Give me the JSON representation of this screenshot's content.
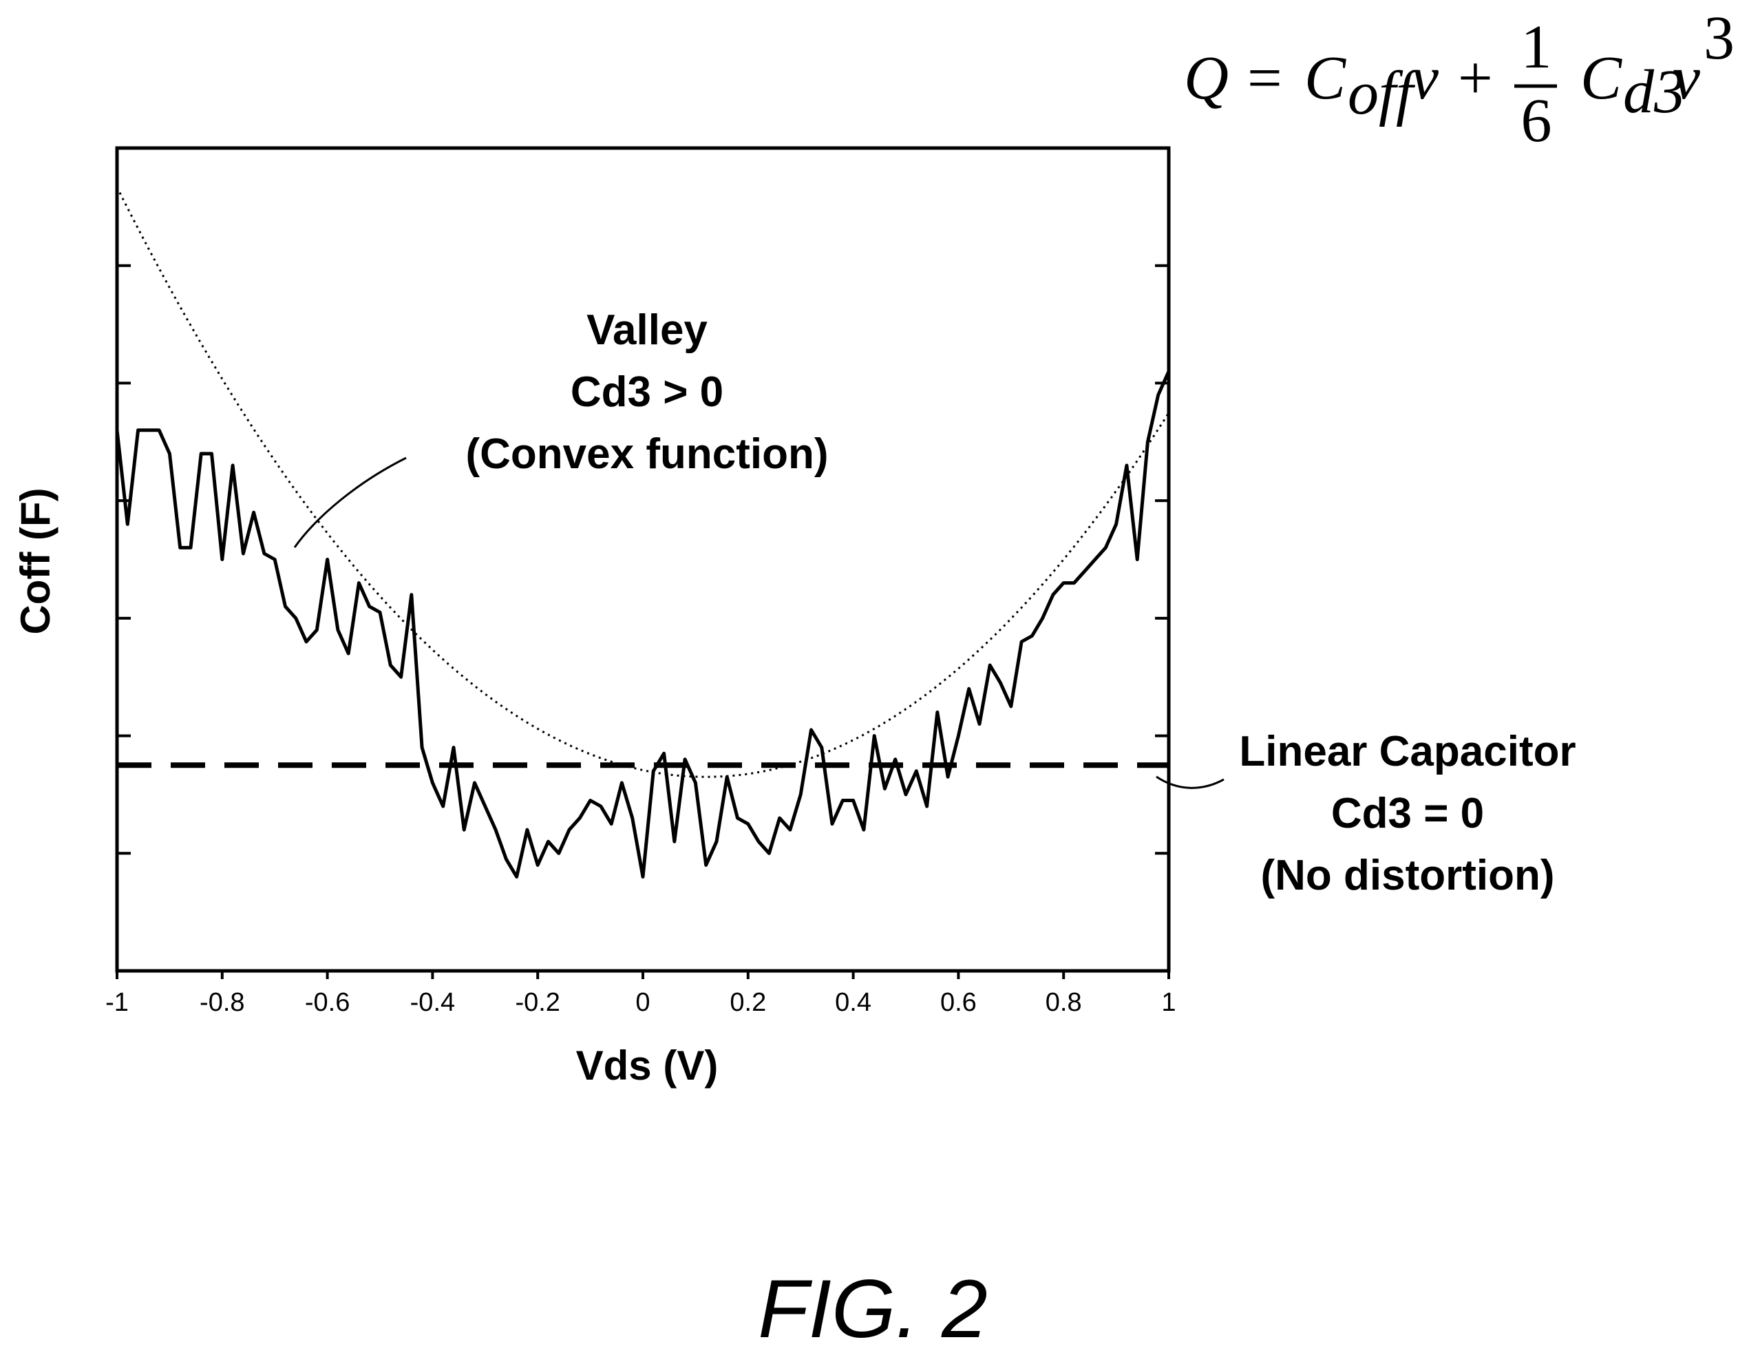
{
  "figure_label": "FIG. 2",
  "equation": {
    "q": "Q",
    "equals": "=",
    "c1": "C",
    "c1_sub": "off",
    "v1": "v",
    "plus": "+",
    "num": "1",
    "den": "6",
    "c2": "C",
    "c2_sub": "d3",
    "v2": "v",
    "exp": "3"
  },
  "chart_data": {
    "type": "line",
    "xlabel": "Vds (V)",
    "ylabel": "Coff (F)",
    "xlim": [
      -1,
      1
    ],
    "ylim": [
      0,
      7
    ],
    "x_ticks": [
      -1,
      -0.8,
      -0.6,
      -0.4,
      -0.2,
      0,
      0.2,
      0.4,
      0.6,
      0.8,
      1
    ],
    "x_tick_labels": [
      "-1",
      "-0.8",
      "-0.6",
      "-0.4",
      "-0.2",
      "0",
      "0.2",
      "0.4",
      "0.6",
      "0.8",
      "1"
    ],
    "y_ticks": [
      1,
      2,
      3,
      4,
      5,
      6
    ],
    "y_tick_labels": [],
    "grid": false,
    "series": [
      {
        "style": "solid",
        "x": [
          -1.0,
          -0.98,
          -0.96,
          -0.94,
          -0.92,
          -0.9,
          -0.88,
          -0.86,
          -0.84,
          -0.82,
          -0.8,
          -0.78,
          -0.76,
          -0.74,
          -0.72,
          -0.7,
          -0.68,
          -0.66,
          -0.64,
          -0.62,
          -0.6,
          -0.58,
          -0.56,
          -0.54,
          -0.52,
          -0.5,
          -0.48,
          -0.46,
          -0.44,
          -0.42,
          -0.4,
          -0.38,
          -0.36,
          -0.34,
          -0.32,
          -0.3,
          -0.28,
          -0.26,
          -0.24,
          -0.22,
          -0.2,
          -0.18,
          -0.16,
          -0.14,
          -0.12,
          -0.1,
          -0.08,
          -0.06,
          -0.04,
          -0.02,
          0.0,
          0.02,
          0.04,
          0.06,
          0.08,
          0.1,
          0.12,
          0.14,
          0.16,
          0.18,
          0.2,
          0.22,
          0.24,
          0.26,
          0.28,
          0.3,
          0.32,
          0.34,
          0.36,
          0.38,
          0.4,
          0.42,
          0.44,
          0.46,
          0.48,
          0.5,
          0.52,
          0.54,
          0.56,
          0.58,
          0.6,
          0.62,
          0.64,
          0.66,
          0.68,
          0.7,
          0.72,
          0.74,
          0.76,
          0.78,
          0.8,
          0.82,
          0.84,
          0.86,
          0.88,
          0.9,
          0.92,
          0.94,
          0.96,
          0.98,
          1.0
        ],
        "y": [
          4.6,
          3.8,
          4.6,
          4.6,
          4.6,
          4.4,
          3.6,
          3.6,
          4.4,
          4.4,
          3.5,
          4.3,
          3.55,
          3.9,
          3.55,
          3.5,
          3.1,
          3.0,
          2.8,
          2.9,
          3.5,
          2.9,
          2.7,
          3.3,
          3.1,
          3.05,
          2.6,
          2.5,
          3.2,
          1.9,
          1.6,
          1.4,
          1.9,
          1.2,
          1.6,
          1.4,
          1.2,
          0.95,
          0.8,
          1.2,
          0.9,
          1.1,
          1.0,
          1.2,
          1.3,
          1.45,
          1.4,
          1.25,
          1.6,
          1.3,
          0.8,
          1.7,
          1.85,
          1.1,
          1.8,
          1.6,
          0.9,
          1.1,
          1.65,
          1.3,
          1.25,
          1.1,
          1.0,
          1.3,
          1.2,
          1.5,
          2.05,
          1.9,
          1.25,
          1.45,
          1.45,
          1.2,
          2.0,
          1.55,
          1.8,
          1.5,
          1.7,
          1.4,
          2.2,
          1.65,
          2.0,
          2.4,
          2.1,
          2.6,
          2.45,
          2.25,
          2.8,
          2.85,
          3.0,
          3.2,
          3.3,
          3.3,
          3.4,
          3.5,
          3.6,
          3.8,
          4.3,
          3.5,
          4.5,
          4.9,
          5.1
        ]
      },
      {
        "style": "dotted",
        "equation": "y = 1.65 + 4.0 * (x - 0.12)^2",
        "x_range": [
          -1,
          1
        ]
      },
      {
        "style": "dashed",
        "y_constant": 1.75,
        "x_range": [
          -1,
          1
        ]
      }
    ],
    "annotations": [
      {
        "lines": [
          "Valley",
          "Cd3 > 0",
          "(Convex function)"
        ]
      },
      {
        "lines": [
          "Linear Capacitor",
          "Cd3 = 0",
          "(No distortion)"
        ]
      }
    ]
  }
}
